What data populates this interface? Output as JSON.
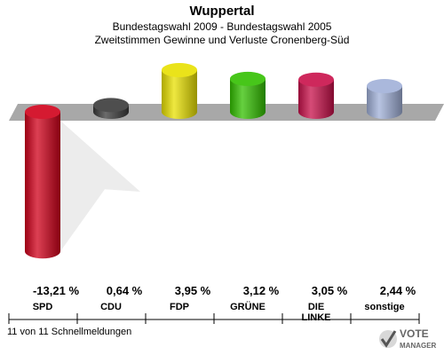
{
  "header": {
    "title": "Wuppertal",
    "subtitle1": "Bundestagswahl 2009 - Bundestagswahl 2005",
    "subtitle2": "Zweitstimmen Gewinne und Verluste Cronenberg-Süd"
  },
  "chart_data": {
    "type": "bar",
    "categories": [
      "SPD",
      "CDU",
      "FDP",
      "GRÜNE",
      "DIE LINKE",
      "sonstige"
    ],
    "category_labels": [
      [
        "SPD"
      ],
      [
        "CDU"
      ],
      [
        "FDP"
      ],
      [
        "GRÜNE"
      ],
      [
        "DIE",
        "LINKE"
      ],
      [
        "sonstige"
      ]
    ],
    "values": [
      -13.21,
      0.64,
      3.95,
      3.12,
      3.05,
      2.44
    ],
    "value_labels": [
      "-13,21 %",
      "0,64 %",
      "3,95 %",
      "3,12 %",
      "3,05 %",
      "2,44 %"
    ],
    "colors": [
      "#d0001a",
      "#3a3a3a",
      "#e8e000",
      "#33c000",
      "#c8104a",
      "#a0b0d8"
    ],
    "ylim": [
      -14,
      4
    ],
    "grid": false,
    "legend": "none"
  },
  "footer": {
    "status": "11 von 11 Schnellmeldungen"
  },
  "logo": {
    "line1": "VOTE",
    "line2": "MANAGER"
  }
}
